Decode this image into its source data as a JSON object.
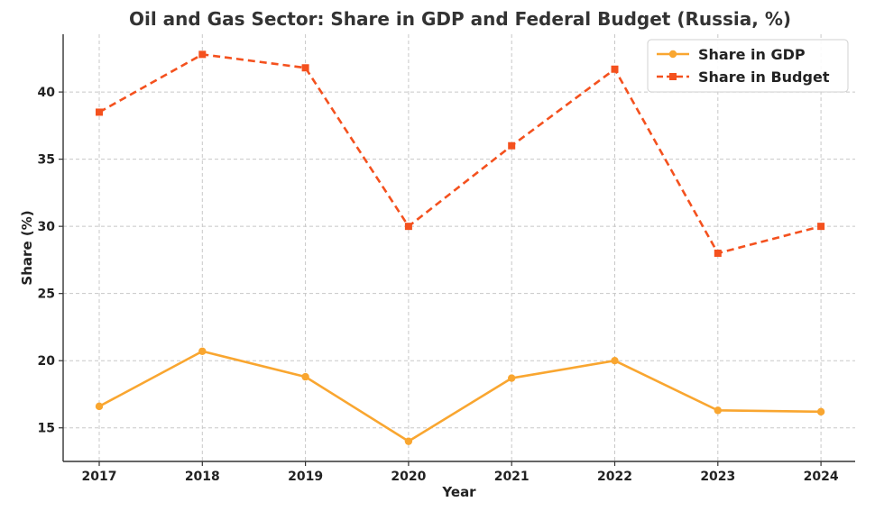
{
  "chart_data": {
    "type": "line",
    "title": "Oil and Gas Sector: Share in GDP and Federal Budget (Russia, %)",
    "xlabel": "Year",
    "ylabel": "Share (%)",
    "categories": [
      "2017",
      "2018",
      "2019",
      "2020",
      "2021",
      "2022",
      "2023",
      "2024"
    ],
    "y_ticks": [
      15,
      20,
      25,
      30,
      35,
      40
    ],
    "ylim": [
      12.5,
      44.3
    ],
    "grid": true,
    "legend_position": "top-right",
    "series": [
      {
        "name": "Share in GDP",
        "values": [
          16.6,
          20.7,
          18.8,
          14.0,
          18.7,
          20.0,
          16.3,
          16.2
        ],
        "color": "#f9a630",
        "marker": "circle",
        "line_style": "solid"
      },
      {
        "name": "Share in Budget",
        "values": [
          38.5,
          42.8,
          41.8,
          30.0,
          36.0,
          41.7,
          28.0,
          30.0
        ],
        "color": "#f4511e",
        "marker": "square",
        "line_style": "dashed"
      }
    ]
  }
}
